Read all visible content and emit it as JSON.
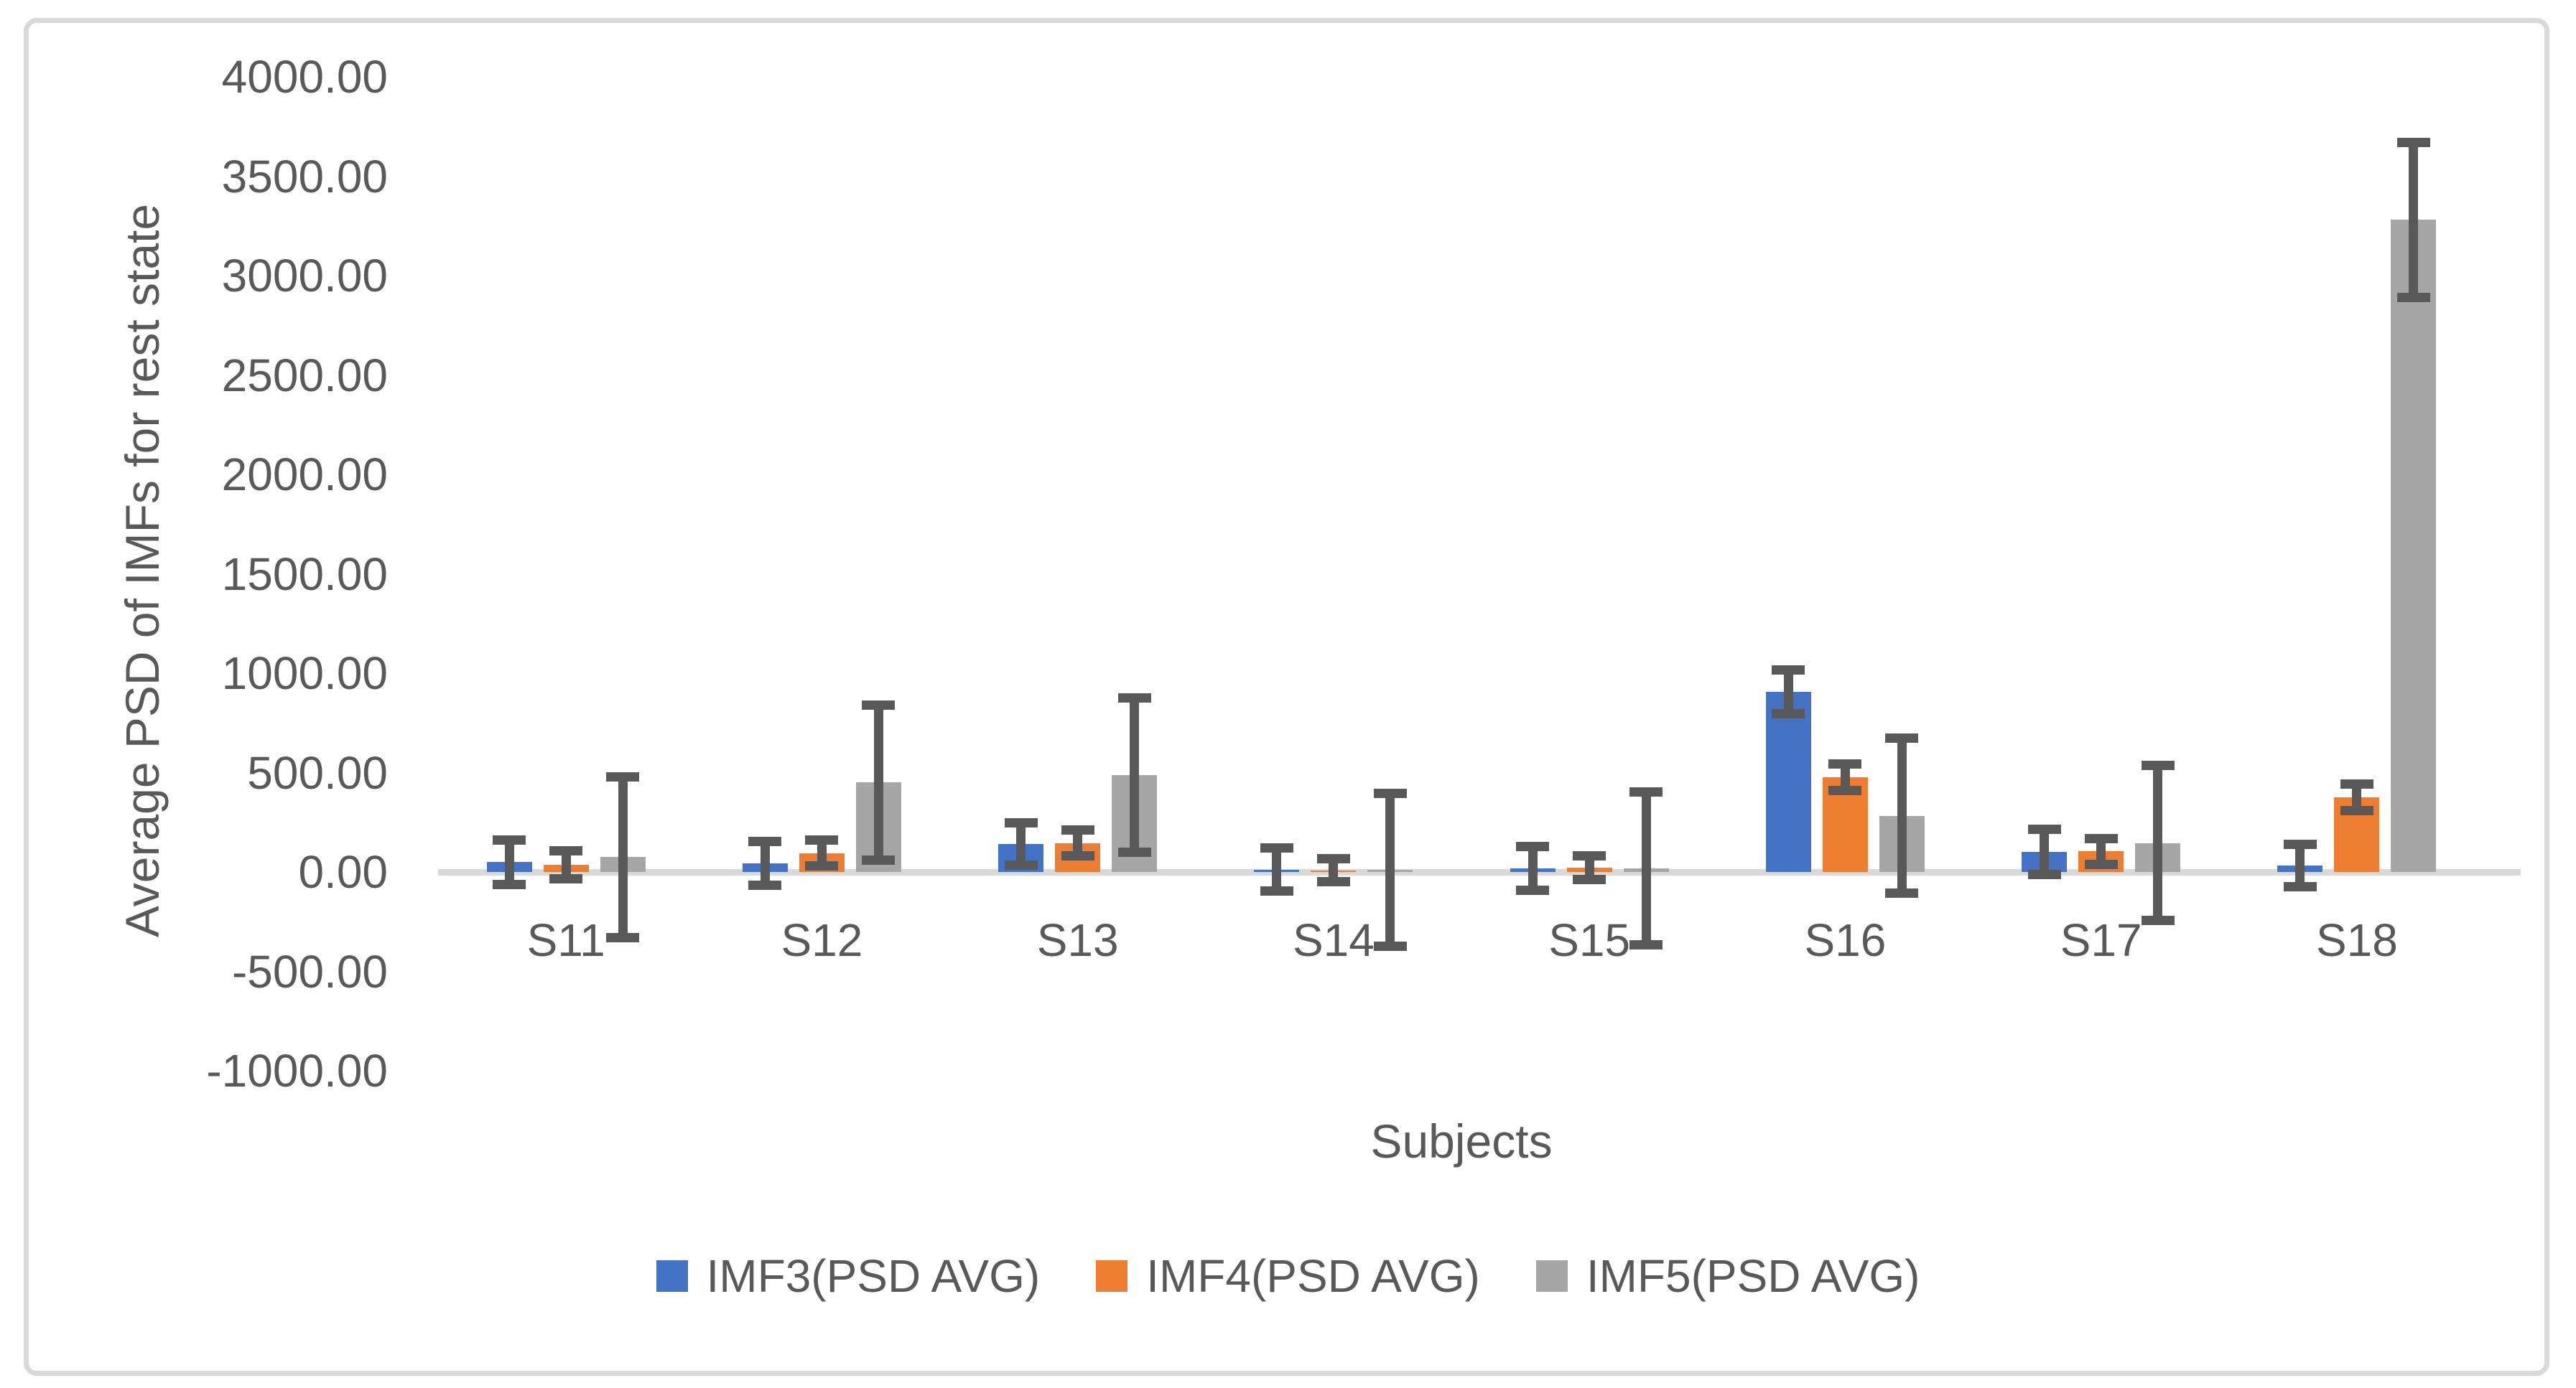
{
  "chart_data": {
    "type": "bar",
    "title": "",
    "xlabel": "Subjects",
    "ylabel": "Average PSD of IMFs for rest state",
    "categories": [
      "S11",
      "S12",
      "S13",
      "S14",
      "S15",
      "S16",
      "S17",
      "S18"
    ],
    "series": [
      {
        "name": "IMF3(PSD AVG)",
        "color": "#4472C4",
        "values": [
          50,
          45,
          140,
          12,
          17,
          905,
          101,
          33
        ],
        "errors": [
          112,
          110,
          106,
          108,
          110,
          110,
          113,
          107
        ]
      },
      {
        "name": "IMF4(PSD AVG)",
        "color": "#ED7D31",
        "values": [
          35,
          95,
          146,
          9,
          21,
          477,
          103,
          375
        ],
        "errors": [
          71,
          66,
          65,
          58,
          59,
          66,
          64,
          67
        ]
      },
      {
        "name": "IMF5(PSD AVG)",
        "color": "#A6A6A6",
        "values": [
          75,
          450,
          488,
          10,
          18,
          282,
          145,
          3280
        ],
        "errors": [
          405,
          390,
          388,
          384,
          386,
          390,
          390,
          390
        ]
      }
    ],
    "ylim": [
      -1000,
      4000
    ],
    "ytick_step": 500,
    "ytick_labels": [
      "4000.00",
      "3500.00",
      "3000.00",
      "2500.00",
      "2000.00",
      "1500.00",
      "1000.00",
      "500.00",
      "0.00",
      "-500.00",
      "-1000.00"
    ],
    "ytick_values": [
      4000,
      3500,
      3000,
      2500,
      2000,
      1500,
      1000,
      500,
      0,
      -500,
      -1000
    ],
    "grid": false,
    "legend_position": "bottom",
    "error_bars": true,
    "error_bar_color": "#595959",
    "axis_text_color": "#595959",
    "baseline_color": "#D9D9D9"
  }
}
